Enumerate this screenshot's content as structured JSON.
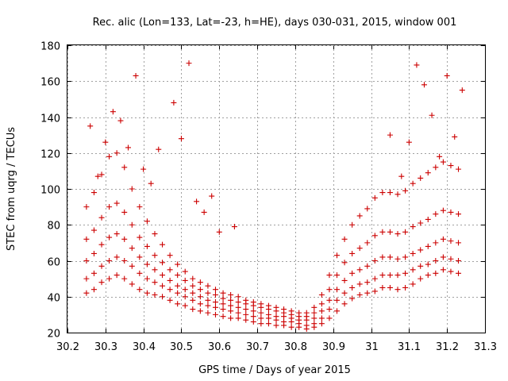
{
  "chart_data": {
    "type": "scatter",
    "title": "Rec. alic (Lon=133, Lat=-23, h=HE), days 030-031, 2015, window 001",
    "xlabel": "GPS time / Days of year 2015",
    "ylabel": "STEC from uqrg / TECUs",
    "xlim": [
      30.2,
      31.3
    ],
    "ylim": [
      20,
      180
    ],
    "xticks": [
      30.2,
      30.3,
      30.4,
      30.5,
      30.6,
      30.7,
      30.8,
      30.9,
      31.0,
      31.1,
      31.2,
      31.3
    ],
    "xtick_labels": [
      "30.2",
      "30.3",
      "30.4",
      "30.5",
      "30.6",
      "30.7",
      "30.8",
      "30.9",
      "31",
      "31.1",
      "31.2",
      "31.3"
    ],
    "yticks": [
      20,
      40,
      60,
      80,
      100,
      120,
      140,
      160,
      180
    ],
    "ytick_labels": [
      "20",
      "40",
      "60",
      "80",
      "100",
      "120",
      "140",
      "160",
      "180"
    ],
    "grid": true,
    "marker": "+",
    "color": "#cc0000",
    "series": [
      {
        "name": "band-0",
        "points": [
          [
            30.25,
            42
          ],
          [
            30.27,
            44
          ],
          [
            30.29,
            48
          ],
          [
            30.31,
            50
          ],
          [
            30.33,
            52
          ],
          [
            30.35,
            50
          ],
          [
            30.37,
            47
          ],
          [
            30.39,
            44
          ],
          [
            30.41,
            42
          ],
          [
            30.43,
            41
          ],
          [
            30.45,
            40
          ],
          [
            30.47,
            38
          ],
          [
            30.49,
            36
          ],
          [
            30.51,
            35
          ],
          [
            30.53,
            33
          ],
          [
            30.55,
            32
          ],
          [
            30.57,
            31
          ],
          [
            30.59,
            30
          ],
          [
            30.61,
            29
          ],
          [
            30.63,
            28
          ],
          [
            30.65,
            28
          ],
          [
            30.67,
            27
          ],
          [
            30.69,
            26
          ],
          [
            30.71,
            25
          ],
          [
            30.73,
            25
          ],
          [
            30.75,
            24
          ],
          [
            30.77,
            24
          ],
          [
            30.79,
            23
          ],
          [
            30.81,
            23
          ],
          [
            30.83,
            22
          ],
          [
            30.85,
            23
          ],
          [
            30.87,
            25
          ],
          [
            30.89,
            28
          ],
          [
            30.91,
            32
          ],
          [
            30.93,
            36
          ],
          [
            30.95,
            39
          ],
          [
            30.97,
            41
          ],
          [
            30.99,
            42
          ],
          [
            31.01,
            43
          ],
          [
            31.03,
            45
          ],
          [
            31.05,
            45
          ],
          [
            31.07,
            44
          ],
          [
            31.09,
            45
          ],
          [
            31.11,
            47
          ],
          [
            31.13,
            50
          ],
          [
            31.15,
            52
          ],
          [
            31.17,
            53
          ],
          [
            31.19,
            55
          ],
          [
            31.21,
            54
          ],
          [
            31.23,
            53
          ]
        ]
      },
      {
        "name": "band-1",
        "points": [
          [
            30.25,
            50
          ],
          [
            30.27,
            53
          ],
          [
            30.29,
            57
          ],
          [
            30.31,
            60
          ],
          [
            30.33,
            62
          ],
          [
            30.35,
            60
          ],
          [
            30.37,
            57
          ],
          [
            30.39,
            53
          ],
          [
            30.41,
            50
          ],
          [
            30.43,
            48
          ],
          [
            30.45,
            46
          ],
          [
            30.47,
            44
          ],
          [
            30.49,
            42
          ],
          [
            30.51,
            40
          ],
          [
            30.53,
            38
          ],
          [
            30.55,
            36
          ],
          [
            30.57,
            35
          ],
          [
            30.59,
            34
          ],
          [
            30.61,
            33
          ],
          [
            30.63,
            32
          ],
          [
            30.65,
            31
          ],
          [
            30.67,
            30
          ],
          [
            30.69,
            29
          ],
          [
            30.71,
            28
          ],
          [
            30.73,
            28
          ],
          [
            30.75,
            27
          ],
          [
            30.77,
            26
          ],
          [
            30.79,
            26
          ],
          [
            30.81,
            25
          ],
          [
            30.83,
            24
          ],
          [
            30.85,
            25
          ],
          [
            30.87,
            28
          ],
          [
            30.89,
            33
          ],
          [
            30.91,
            38
          ],
          [
            30.93,
            42
          ],
          [
            30.95,
            45
          ],
          [
            30.97,
            47
          ],
          [
            30.99,
            48
          ],
          [
            31.01,
            50
          ],
          [
            31.03,
            52
          ],
          [
            31.05,
            52
          ],
          [
            31.07,
            52
          ],
          [
            31.09,
            53
          ],
          [
            31.11,
            55
          ],
          [
            31.13,
            57
          ],
          [
            31.15,
            58
          ],
          [
            31.17,
            60
          ],
          [
            31.19,
            62
          ],
          [
            31.21,
            61
          ],
          [
            31.23,
            60
          ]
        ]
      },
      {
        "name": "band-2",
        "points": [
          [
            30.25,
            60
          ],
          [
            30.27,
            64
          ],
          [
            30.29,
            69
          ],
          [
            30.31,
            73
          ],
          [
            30.33,
            75
          ],
          [
            30.35,
            72
          ],
          [
            30.37,
            67
          ],
          [
            30.39,
            62
          ],
          [
            30.41,
            58
          ],
          [
            30.43,
            55
          ],
          [
            30.45,
            52
          ],
          [
            30.47,
            49
          ],
          [
            30.49,
            46
          ],
          [
            30.51,
            44
          ],
          [
            30.53,
            42
          ],
          [
            30.55,
            40
          ],
          [
            30.57,
            38
          ],
          [
            30.59,
            37
          ],
          [
            30.61,
            36
          ],
          [
            30.63,
            35
          ],
          [
            30.65,
            34
          ],
          [
            30.67,
            33
          ],
          [
            30.69,
            32
          ],
          [
            30.71,
            31
          ],
          [
            30.73,
            30
          ],
          [
            30.75,
            29
          ],
          [
            30.77,
            29
          ],
          [
            30.79,
            28
          ],
          [
            30.81,
            27
          ],
          [
            30.83,
            27
          ],
          [
            30.85,
            28
          ],
          [
            30.87,
            32
          ],
          [
            30.89,
            38
          ],
          [
            30.91,
            44
          ],
          [
            30.93,
            49
          ],
          [
            30.95,
            53
          ],
          [
            30.97,
            55
          ],
          [
            30.99,
            57
          ],
          [
            31.01,
            60
          ],
          [
            31.03,
            62
          ],
          [
            31.05,
            62
          ],
          [
            31.07,
            61
          ],
          [
            31.09,
            62
          ],
          [
            31.11,
            64
          ],
          [
            31.13,
            66
          ],
          [
            31.15,
            68
          ],
          [
            31.17,
            70
          ],
          [
            31.19,
            72
          ],
          [
            31.21,
            71
          ],
          [
            31.23,
            70
          ]
        ]
      },
      {
        "name": "band-3",
        "points": [
          [
            30.25,
            72
          ],
          [
            30.27,
            77
          ],
          [
            30.29,
            84
          ],
          [
            30.31,
            90
          ],
          [
            30.33,
            92
          ],
          [
            30.35,
            87
          ],
          [
            30.37,
            80
          ],
          [
            30.39,
            73
          ],
          [
            30.41,
            68
          ],
          [
            30.43,
            63
          ],
          [
            30.45,
            59
          ],
          [
            30.47,
            55
          ],
          [
            30.49,
            52
          ],
          [
            30.51,
            49
          ],
          [
            30.53,
            46
          ],
          [
            30.55,
            44
          ],
          [
            30.57,
            42
          ],
          [
            30.59,
            41
          ],
          [
            30.61,
            39
          ],
          [
            30.63,
            38
          ],
          [
            30.65,
            37
          ],
          [
            30.67,
            36
          ],
          [
            30.69,
            35
          ],
          [
            30.71,
            34
          ],
          [
            30.73,
            33
          ],
          [
            30.75,
            32
          ],
          [
            30.77,
            31
          ],
          [
            30.79,
            30
          ],
          [
            30.81,
            29
          ],
          [
            30.83,
            29
          ],
          [
            30.85,
            31
          ],
          [
            30.87,
            36
          ],
          [
            30.89,
            44
          ],
          [
            30.91,
            52
          ],
          [
            30.93,
            59
          ],
          [
            30.95,
            64
          ],
          [
            30.97,
            67
          ],
          [
            30.99,
            70
          ],
          [
            31.01,
            74
          ],
          [
            31.03,
            76
          ],
          [
            31.05,
            76
          ],
          [
            31.07,
            75
          ],
          [
            31.09,
            76
          ],
          [
            31.11,
            79
          ],
          [
            31.13,
            81
          ],
          [
            31.15,
            83
          ],
          [
            31.17,
            86
          ],
          [
            31.19,
            88
          ],
          [
            31.21,
            87
          ],
          [
            31.23,
            86
          ]
        ]
      },
      {
        "name": "band-4",
        "points": [
          [
            30.25,
            90
          ],
          [
            30.27,
            98
          ],
          [
            30.29,
            108
          ],
          [
            30.31,
            118
          ],
          [
            30.33,
            120
          ],
          [
            30.35,
            112
          ],
          [
            30.37,
            100
          ],
          [
            30.39,
            90
          ],
          [
            30.41,
            82
          ],
          [
            30.43,
            75
          ],
          [
            30.45,
            69
          ],
          [
            30.47,
            63
          ],
          [
            30.49,
            58
          ],
          [
            30.51,
            54
          ],
          [
            30.53,
            50
          ],
          [
            30.55,
            48
          ],
          [
            30.57,
            46
          ],
          [
            30.59,
            44
          ],
          [
            30.61,
            42
          ],
          [
            30.63,
            41
          ],
          [
            30.65,
            40
          ],
          [
            30.67,
            38
          ],
          [
            30.69,
            37
          ],
          [
            30.71,
            36
          ],
          [
            30.73,
            35
          ],
          [
            30.75,
            34
          ],
          [
            30.77,
            33
          ],
          [
            30.79,
            32
          ],
          [
            30.81,
            31
          ],
          [
            30.83,
            31
          ],
          [
            30.85,
            34
          ],
          [
            30.87,
            41
          ],
          [
            30.89,
            52
          ],
          [
            30.91,
            63
          ],
          [
            30.93,
            72
          ],
          [
            30.95,
            80
          ],
          [
            30.97,
            85
          ],
          [
            30.99,
            89
          ],
          [
            31.01,
            95
          ],
          [
            31.03,
            98
          ],
          [
            31.05,
            98
          ],
          [
            31.07,
            97
          ],
          [
            31.09,
            99
          ],
          [
            31.11,
            103
          ],
          [
            31.13,
            106
          ],
          [
            31.15,
            109
          ],
          [
            31.17,
            112
          ],
          [
            31.19,
            115
          ],
          [
            31.21,
            113
          ],
          [
            31.23,
            111
          ]
        ]
      },
      {
        "name": "band-5",
        "points": [
          [
            30.26,
            135
          ],
          [
            30.28,
            107
          ],
          [
            30.3,
            126
          ],
          [
            30.32,
            143
          ],
          [
            30.34,
            138
          ],
          [
            30.36,
            123
          ],
          [
            30.38,
            163
          ],
          [
            30.4,
            111
          ],
          [
            30.42,
            103
          ],
          [
            30.44,
            122
          ],
          [
            30.48,
            148
          ],
          [
            30.5,
            128
          ],
          [
            30.52,
            170
          ],
          [
            30.54,
            93
          ],
          [
            30.56,
            87
          ],
          [
            30.58,
            96
          ],
          [
            30.6,
            76
          ],
          [
            30.64,
            79
          ],
          [
            31.05,
            130
          ],
          [
            31.08,
            107
          ],
          [
            31.1,
            126
          ],
          [
            31.12,
            169
          ],
          [
            31.14,
            158
          ],
          [
            31.16,
            141
          ],
          [
            31.18,
            118
          ],
          [
            31.2,
            163
          ],
          [
            31.22,
            129
          ],
          [
            31.24,
            155
          ]
        ]
      }
    ]
  }
}
